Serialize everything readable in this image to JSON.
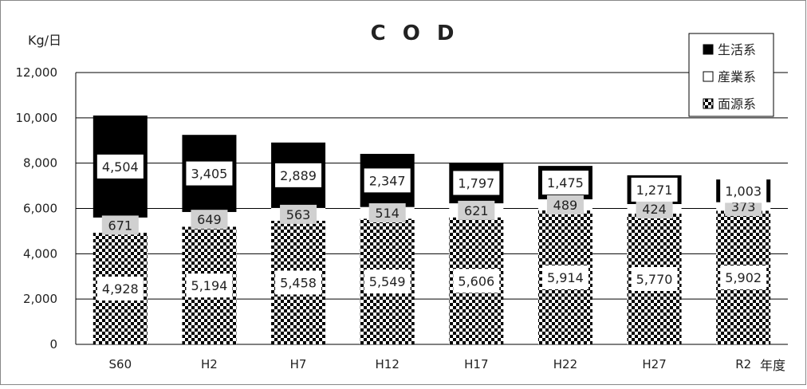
{
  "chart_data": {
    "type": "bar",
    "stacked": true,
    "title": "C O D",
    "ylabel": "Kg/日",
    "xlabel": "年度",
    "ylim": [
      0,
      12000
    ],
    "yticks": [
      "0",
      "2,000",
      "4,000",
      "6,000",
      "8,000",
      "10,000",
      "12,000"
    ],
    "grid": true,
    "legend_position": "top-right",
    "categories": [
      "S60",
      "H2",
      "H7",
      "H12",
      "H17",
      "H22",
      "H27",
      "R2"
    ],
    "series": [
      {
        "name": "面源系",
        "pattern": "checker",
        "values": [
          4928,
          5194,
          5458,
          5549,
          5606,
          5914,
          5770,
          5902
        ],
        "labels": [
          "4,928",
          "5,194",
          "5,458",
          "5,549",
          "5,606",
          "5,914",
          "5,770",
          "5,902"
        ]
      },
      {
        "name": "産業系",
        "pattern": "white",
        "values": [
          671,
          649,
          563,
          514,
          621,
          489,
          424,
          373
        ],
        "labels": [
          "671",
          "649",
          "563",
          "514",
          "621",
          "489",
          "424",
          "373"
        ]
      },
      {
        "name": "生活系",
        "pattern": "black",
        "values": [
          4504,
          3405,
          2889,
          2347,
          1797,
          1475,
          1271,
          1003
        ],
        "labels": [
          "4,504",
          "3,405",
          "2,889",
          "2,347",
          "1,797",
          "1,475",
          "1,271",
          "1,003"
        ]
      }
    ],
    "legend_order": [
      "生活系",
      "産業系",
      "面源系"
    ],
    "colors": {
      "black": "#000000",
      "white": "#ffffff",
      "grid": "#000000",
      "label_box_gray": "#d0d0d0"
    }
  }
}
